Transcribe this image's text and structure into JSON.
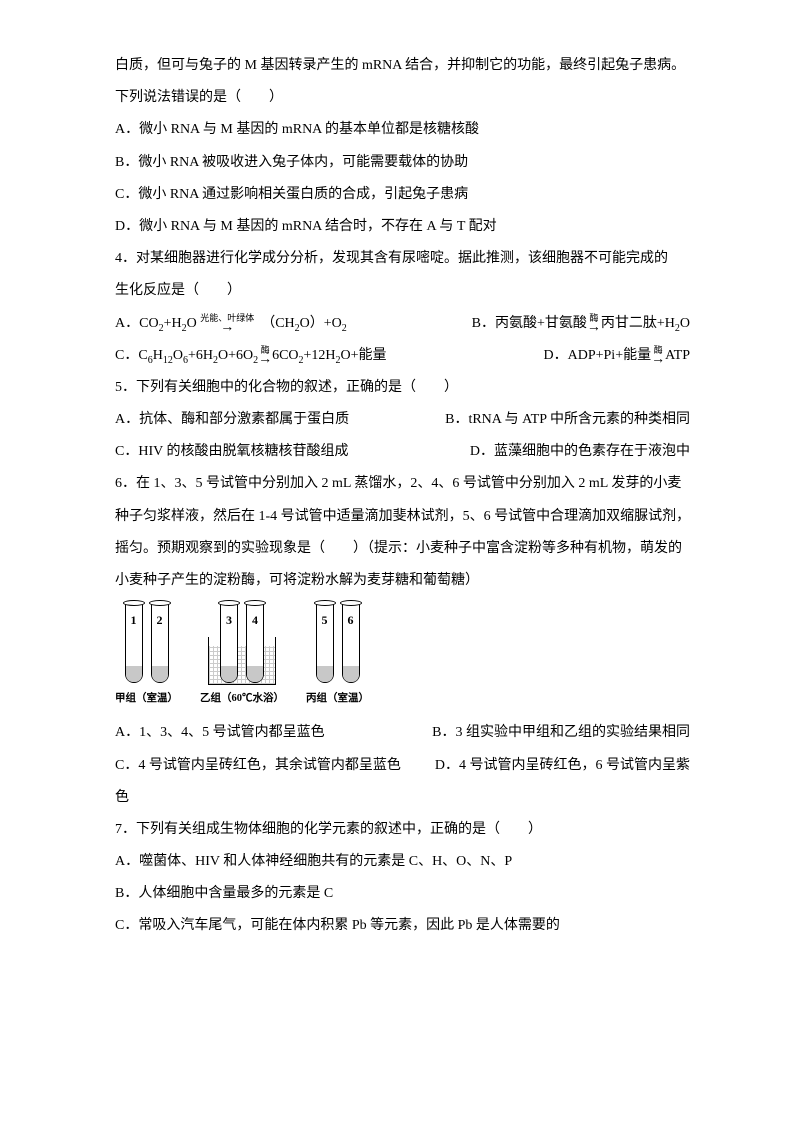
{
  "intro": {
    "line1": "白质，但可与兔子的 M 基因转录产生的 mRNA 结合，并抑制它的功能，最终引起兔子患病。",
    "line2": "下列说法错误的是（　　）"
  },
  "q3_opts": {
    "A": "A．微小 RNA 与 M 基因的 mRNA 的基本单位都是核糖核酸",
    "B": "B．微小 RNA 被吸收进入兔子体内，可能需要载体的协助",
    "C": "C．微小 RNA 通过影响相关蛋白质的合成，引起兔子患病",
    "D": "D．微小 RNA 与 M 基因的 mRNA 结合时，不存在 A 与 T 配对"
  },
  "q4": {
    "stem1": "4．对某细胞器进行化学成分分析，发现其含有尿嘧啶。据此推测，该细胞器不可能完成的",
    "stem2": "生化反应是（　　）",
    "A_pre": "A．CO",
    "A_mid1": "+H",
    "A_mid2": "O",
    "A_arrow_top": "光能、叶绿体",
    "A_post1": "（CH",
    "A_post2": "O）+O",
    "B_pre": "B．丙氨酸+甘氨酸",
    "B_arrow_top": "酶",
    "B_post": "丙甘二肽+H",
    "B_post2": "O",
    "C_pre": "C．C",
    "C_f1": "H",
    "C_f2": "O",
    "C_f3": "+6H",
    "C_f4": "O+6O",
    "C_arrow_top": "酶",
    "C_post1": "6CO",
    "C_post2": "+12H",
    "C_post3": "O+能量",
    "D_pre": "D．ADP+Pi+能量",
    "D_arrow_top": "酶",
    "D_post": "ATP"
  },
  "q5": {
    "stem": "5．下列有关细胞中的化合物的叙述，正确的是（　　）",
    "A": "A．抗体、酶和部分激素都属于蛋白质",
    "B": "B．tRNA 与 ATP 中所含元素的种类相同",
    "C": "C．HIV 的核酸由脱氧核糖核苷酸组成",
    "D": "D．蓝藻细胞中的色素存在于液泡中"
  },
  "q6": {
    "stem1": "6．在 1、3、5 号试管中分别加入 2 mL 蒸馏水，2、4、6 号试管中分别加入 2 mL 发芽的小麦",
    "stem2": "种子匀浆样液，然后在 1-4 号试管中适量滴加斐林试剂，5、6 号试管中合理滴加双缩脲试剂，",
    "stem3": "摇匀。预期观察到的实验现象是（　　）（提示：小麦种子中富含淀粉等多种有机物，萌发的",
    "stem4": "小麦种子产生的淀粉酶，可将淀粉水解为麦芽糖和葡萄糖）",
    "labels": {
      "g1": "甲组（室温）",
      "g2": "乙组（60℃水浴）",
      "g3": "丙组（室温）",
      "t1": "1",
      "t2": "2",
      "t3": "3",
      "t4": "4",
      "t5": "5",
      "t6": "6"
    },
    "A": "A．1、3、4、5 号试管内都呈蓝色",
    "B": "B．3 组实验中甲组和乙组的实验结果相同",
    "C": "C．4 号试管内呈砖红色，其余试管内都呈蓝色",
    "D": "D．4 号试管内呈砖红色，6 号试管内呈紫",
    "D2": "色"
  },
  "q7": {
    "stem": "7．下列有关组成生物体细胞的化学元素的叙述中，正确的是（　　）",
    "A": "A．噬菌体、HIV 和人体神经细胞共有的元素是 C、H、O、N、P",
    "B": "B．人体细胞中含量最多的元素是 C",
    "C": "C．常吸入汽车尾气，可能在体内积累 Pb 等元素，因此 Pb 是人体需要的"
  }
}
